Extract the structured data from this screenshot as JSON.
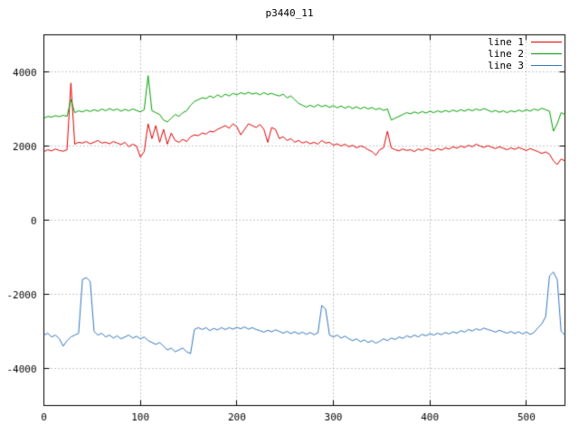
{
  "chart_data": {
    "type": "line",
    "title": "p3440_11",
    "xlabel": "",
    "ylabel": "",
    "xlim": [
      0,
      540
    ],
    "ylim": [
      -5000,
      5000
    ],
    "x_ticks": [
      0,
      100,
      200,
      300,
      400,
      500
    ],
    "y_ticks": [
      -4000,
      -2000,
      0,
      2000,
      4000
    ],
    "grid": true,
    "legend_position": "top-right",
    "x_start": 0,
    "x_step": 4,
    "series": [
      {
        "name": "line 1",
        "color": "#e00000",
        "values": [
          1850,
          1900,
          1870,
          1920,
          1880,
          1860,
          1900,
          3700,
          2050,
          2100,
          2080,
          2120,
          2060,
          2100,
          2150,
          2080,
          2100,
          2060,
          2120,
          2080,
          2040,
          2100,
          1980,
          2050,
          2000,
          1700,
          1850,
          2600,
          2200,
          2550,
          2100,
          2450,
          2050,
          2350,
          2150,
          2100,
          2180,
          2120,
          2250,
          2300,
          2280,
          2350,
          2320,
          2400,
          2380,
          2450,
          2500,
          2550,
          2480,
          2600,
          2520,
          2300,
          2450,
          2600,
          2550,
          2500,
          2580,
          2450,
          2100,
          2500,
          2450,
          2200,
          2250,
          2150,
          2200,
          2100,
          2150,
          2080,
          2120,
          2060,
          2100,
          2050,
          2150,
          2080,
          2100,
          2020,
          2060,
          2000,
          2050,
          1980,
          2020,
          1950,
          2000,
          1970,
          1900,
          1850,
          1750,
          1900,
          1950,
          2400,
          1950,
          1900,
          1870,
          1920,
          1880,
          1900,
          1850,
          1920,
          1880,
          1940,
          1900,
          1870,
          1930,
          1890,
          1950,
          1920,
          1980,
          1940,
          2000,
          1960,
          2020,
          1980,
          2050,
          2000,
          1960,
          2010,
          1970,
          1930,
          1980,
          1940,
          1900,
          1950,
          1910,
          1960,
          1920,
          1880,
          1930,
          1890,
          1850,
          1800,
          1840,
          1780,
          1600,
          1500,
          1650,
          1600
        ]
      },
      {
        "name": "line 2",
        "color": "#00a000",
        "values": [
          2750,
          2800,
          2780,
          2820,
          2790,
          2830,
          2800,
          3250,
          2900,
          2950,
          2920,
          2970,
          2930,
          2980,
          2940,
          3000,
          2950,
          3010,
          2960,
          3000,
          2940,
          2990,
          2950,
          3000,
          2960,
          2920,
          2980,
          3900,
          2950,
          2900,
          2850,
          2700,
          2650,
          2750,
          2850,
          2800,
          2900,
          2950,
          3100,
          3200,
          3250,
          3300,
          3280,
          3350,
          3300,
          3380,
          3320,
          3400,
          3350,
          3420,
          3380,
          3440,
          3400,
          3450,
          3400,
          3430,
          3380,
          3440,
          3390,
          3420,
          3380,
          3350,
          3400,
          3300,
          3350,
          3250,
          3150,
          3100,
          3050,
          3100,
          3050,
          3120,
          3060,
          3100,
          3040,
          3090,
          3030,
          3080,
          3020,
          3070,
          3010,
          3060,
          3000,
          3050,
          3000,
          3040,
          2980,
          3020,
          2960,
          3000,
          2700,
          2750,
          2800,
          2850,
          2900,
          2870,
          2920,
          2880,
          2930,
          2890,
          2940,
          2900,
          2950,
          2910,
          2960,
          2920,
          2970,
          2930,
          2980,
          2940,
          2990,
          2950,
          3000,
          2960,
          3010,
          2970,
          2920,
          2960,
          2910,
          2950,
          2900,
          2950,
          2920,
          2970,
          2930,
          2980,
          2940,
          3000,
          2960,
          3020,
          2980,
          2940,
          2400,
          2600,
          2900,
          2850
        ]
      },
      {
        "name": "line 3",
        "color": "#3377bb",
        "values": [
          -3100,
          -3050,
          -3150,
          -3100,
          -3200,
          -3400,
          -3250,
          -3150,
          -3100,
          -3050,
          -1600,
          -1550,
          -1650,
          -3000,
          -3100,
          -3050,
          -3150,
          -3100,
          -3180,
          -3120,
          -3200,
          -3150,
          -3100,
          -3180,
          -3130,
          -3200,
          -3150,
          -3250,
          -3300,
          -3350,
          -3300,
          -3400,
          -3500,
          -3450,
          -3550,
          -3500,
          -3450,
          -3550,
          -3600,
          -2950,
          -2900,
          -2950,
          -2900,
          -2980,
          -2920,
          -2960,
          -2900,
          -2950,
          -2900,
          -2940,
          -2890,
          -2930,
          -2880,
          -2940,
          -2900,
          -2950,
          -2980,
          -3020,
          -2970,
          -3010,
          -2960,
          -3000,
          -3050,
          -3000,
          -3060,
          -3010,
          -3070,
          -3020,
          -3080,
          -3030,
          -3090,
          -3040,
          -2300,
          -2400,
          -3100,
          -3150,
          -3100,
          -3180,
          -3130,
          -3200,
          -3250,
          -3200,
          -3280,
          -3230,
          -3300,
          -3250,
          -3320,
          -3270,
          -3200,
          -3250,
          -3180,
          -3220,
          -3150,
          -3190,
          -3120,
          -3160,
          -3100,
          -3150,
          -3080,
          -3120,
          -3060,
          -3100,
          -3050,
          -3090,
          -3030,
          -3070,
          -3010,
          -3050,
          -2980,
          -3020,
          -2950,
          -2990,
          -2930,
          -2970,
          -2910,
          -2950,
          -2980,
          -3020,
          -2970,
          -3010,
          -3050,
          -3000,
          -3060,
          -3010,
          -3070,
          -3020,
          -3080,
          -3030,
          -2900,
          -2800,
          -2600,
          -1500,
          -1400,
          -1600,
          -3000,
          -3100
        ]
      }
    ]
  }
}
